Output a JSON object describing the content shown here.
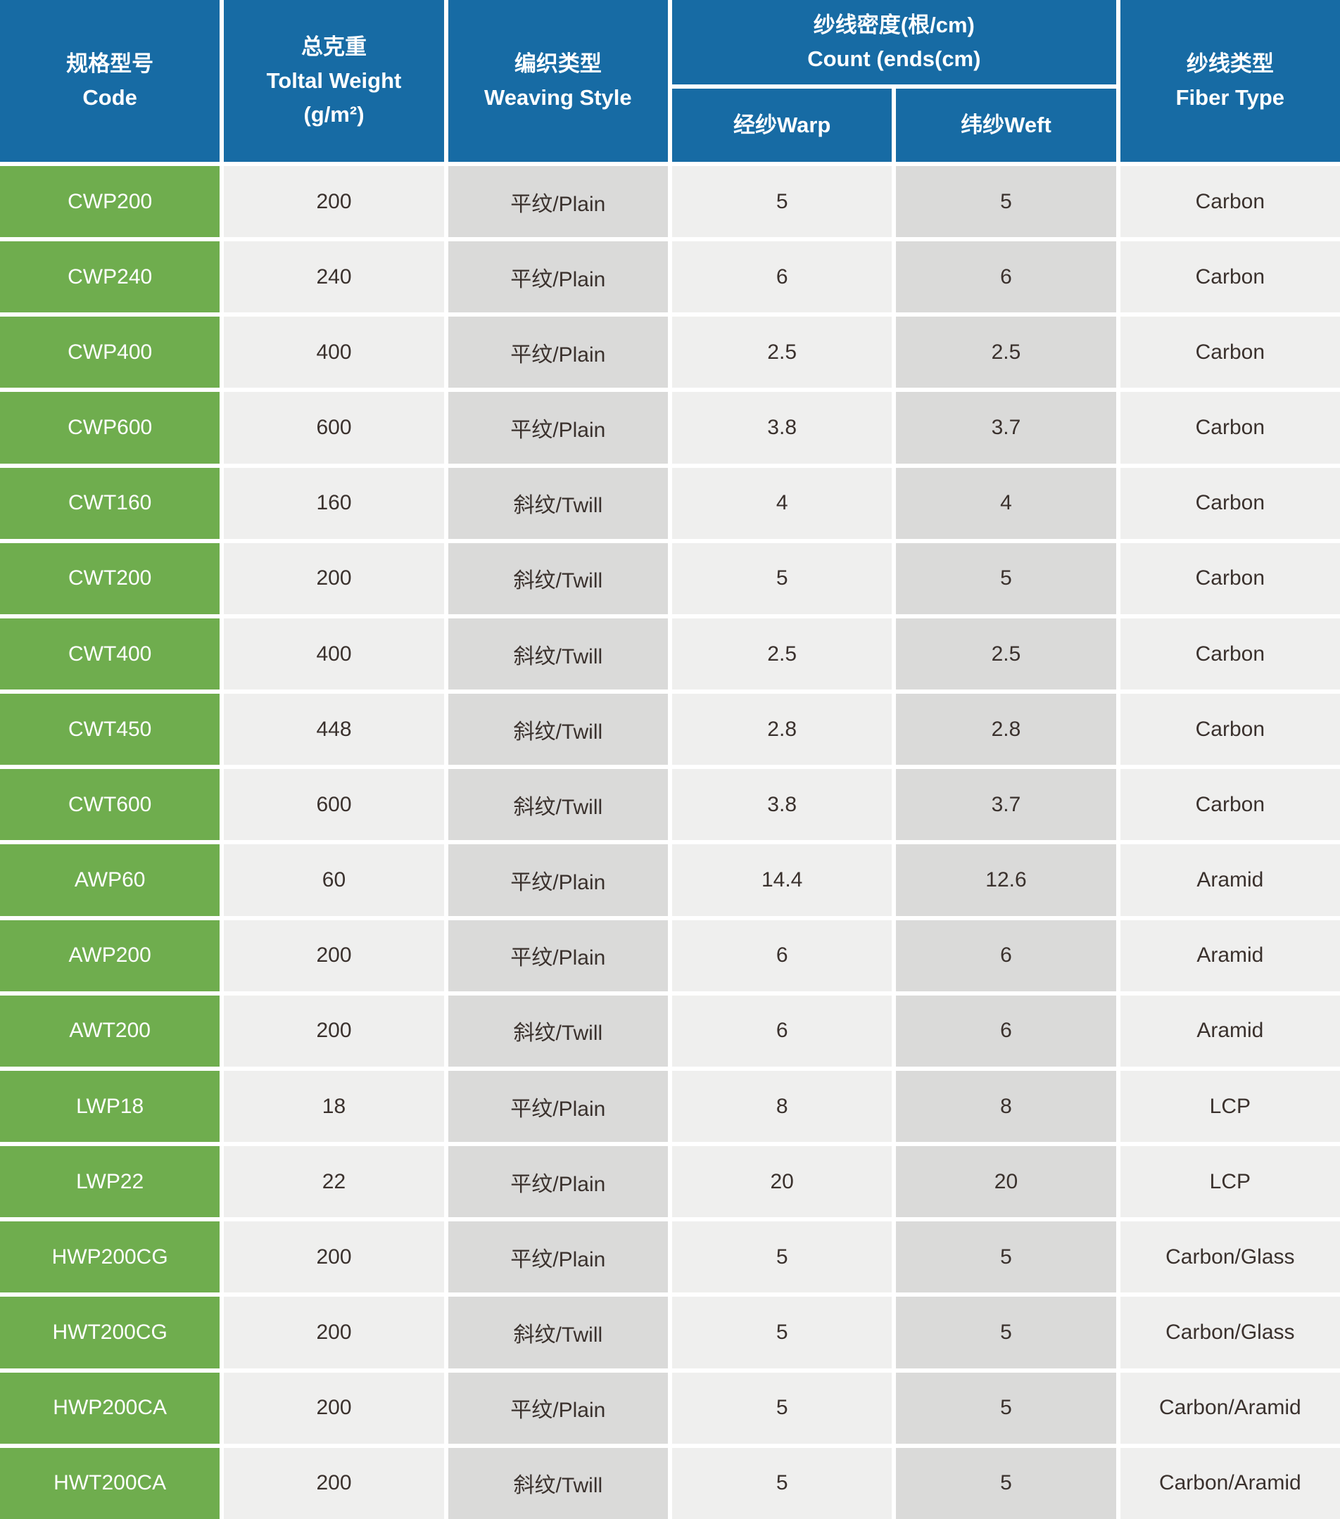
{
  "colors": {
    "header_blue": "#176ba4",
    "row_green": "#6fad4e",
    "cell_light": "#efefee",
    "cell_dark": "#dadad9",
    "cell_text": "#3a312d",
    "header_text": "#ffffff",
    "gap_white": "#ffffff"
  },
  "table": {
    "header": {
      "code": {
        "zh": "规格型号",
        "en": "Code"
      },
      "weight": {
        "zh": "总克重",
        "en": "Toltal Weight",
        "unit": "(g/m²)"
      },
      "weaving": {
        "zh": "编织类型",
        "en": "Weaving Style"
      },
      "count": {
        "zh": "纱线密度(根/cm)",
        "en": "Count (ends(cm)"
      },
      "warp": {
        "label": "经纱Warp"
      },
      "weft": {
        "label": "纬纱Weft"
      },
      "fiber": {
        "zh": "纱线类型",
        "en": "Fiber Type"
      }
    },
    "rows": [
      {
        "code": "CWP200",
        "weight": "200",
        "weaving": "平纹/Plain",
        "warp": "5",
        "weft": "5",
        "fiber": "Carbon"
      },
      {
        "code": "CWP240",
        "weight": "240",
        "weaving": "平纹/Plain",
        "warp": "6",
        "weft": "6",
        "fiber": "Carbon"
      },
      {
        "code": "CWP400",
        "weight": "400",
        "weaving": "平纹/Plain",
        "warp": "2.5",
        "weft": "2.5",
        "fiber": "Carbon"
      },
      {
        "code": "CWP600",
        "weight": "600",
        "weaving": "平纹/Plain",
        "warp": "3.8",
        "weft": "3.7",
        "fiber": "Carbon"
      },
      {
        "code": "CWT160",
        "weight": "160",
        "weaving": "斜纹/Twill",
        "warp": "4",
        "weft": "4",
        "fiber": "Carbon"
      },
      {
        "code": "CWT200",
        "weight": "200",
        "weaving": "斜纹/Twill",
        "warp": "5",
        "weft": "5",
        "fiber": "Carbon"
      },
      {
        "code": "CWT400",
        "weight": "400",
        "weaving": "斜纹/Twill",
        "warp": "2.5",
        "weft": "2.5",
        "fiber": "Carbon"
      },
      {
        "code": "CWT450",
        "weight": "448",
        "weaving": "斜纹/Twill",
        "warp": "2.8",
        "weft": "2.8",
        "fiber": "Carbon"
      },
      {
        "code": "CWT600",
        "weight": "600",
        "weaving": "斜纹/Twill",
        "warp": "3.8",
        "weft": "3.7",
        "fiber": "Carbon"
      },
      {
        "code": "AWP60",
        "weight": "60",
        "weaving": "平纹/Plain",
        "warp": "14.4",
        "weft": "12.6",
        "fiber": "Aramid"
      },
      {
        "code": "AWP200",
        "weight": "200",
        "weaving": "平纹/Plain",
        "warp": "6",
        "weft": "6",
        "fiber": "Aramid"
      },
      {
        "code": "AWT200",
        "weight": "200",
        "weaving": "斜纹/Twill",
        "warp": "6",
        "weft": "6",
        "fiber": "Aramid"
      },
      {
        "code": "LWP18",
        "weight": "18",
        "weaving": "平纹/Plain",
        "warp": "8",
        "weft": "8",
        "fiber": "LCP"
      },
      {
        "code": "LWP22",
        "weight": "22",
        "weaving": "平纹/Plain",
        "warp": "20",
        "weft": "20",
        "fiber": "LCP"
      },
      {
        "code": "HWP200CG",
        "weight": "200",
        "weaving": "平纹/Plain",
        "warp": "5",
        "weft": "5",
        "fiber": "Carbon/Glass"
      },
      {
        "code": "HWT200CG",
        "weight": "200",
        "weaving": "斜纹/Twill",
        "warp": "5",
        "weft": "5",
        "fiber": "Carbon/Glass"
      },
      {
        "code": "HWP200CA",
        "weight": "200",
        "weaving": "平纹/Plain",
        "warp": "5",
        "weft": "5",
        "fiber": "Carbon/Aramid"
      },
      {
        "code": "HWT200CA",
        "weight": "200",
        "weaving": "斜纹/Twill",
        "warp": "5",
        "weft": "5",
        "fiber": "Carbon/Aramid"
      }
    ]
  }
}
